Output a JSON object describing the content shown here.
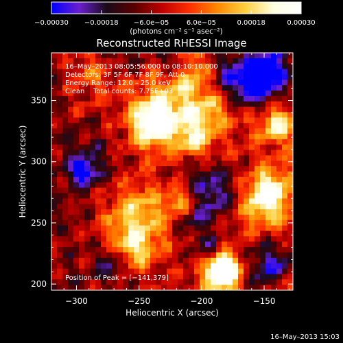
{
  "chart_data": {
    "type": "heatmap",
    "title": "Reconstructed RHESSI Image",
    "xlabel": "Heliocentric X (arcsec)",
    "ylabel": "Heliocentric Y (arcsec)",
    "xlim": [
      -320,
      -127
    ],
    "ylim": [
      195,
      389
    ],
    "x_ticks": [
      -300,
      -250,
      -200,
      -150
    ],
    "y_ticks": [
      200,
      250,
      300,
      350
    ],
    "x_tick_labels": [
      "−300",
      "−250",
      "−200",
      "−150"
    ],
    "y_tick_labels": [
      "200",
      "250",
      "300",
      "350"
    ],
    "colorbar": {
      "range": [
        -0.0003,
        0.0003
      ],
      "ticks": [
        -0.0003,
        -0.00018,
        -6e-05,
        6e-05,
        0.00018,
        0.0003
      ],
      "tick_labels": [
        "−0.00030",
        "−0.00018",
        "−6.0e−05",
        "6.0e−05",
        "0.00018",
        "0.00030"
      ],
      "unit_label": "(photons cm⁻² s⁻¹ asec⁻²)",
      "colors": [
        "#0000ff",
        "#6a1fd0",
        "#1a0a18",
        "#5a0000",
        "#c00000",
        "#ff3000",
        "#ff8a00",
        "#ffd040",
        "#ffffe0",
        "#ffffff"
      ]
    },
    "annotations": [
      "16–May–2013 08:05:56.000 to 08:10:10.000",
      "Detectors: 3F 5F 6F 7F 8F 9F, Att 0",
      "Energy Range: 12.0 – 25.0 keV",
      "Clean    Total counts: 7.75E+03"
    ],
    "peak_label": "Position of Peak = [−141,379]",
    "peak_position": [
      -141,
      379
    ],
    "grid": false
  },
  "footer_timestamp": "16–May–2013 15:03"
}
